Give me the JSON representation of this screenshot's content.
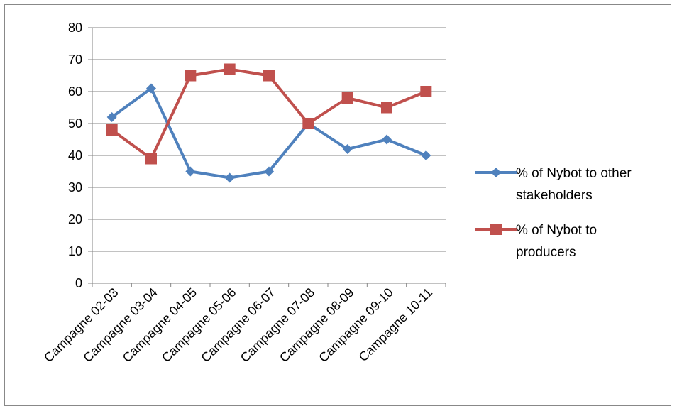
{
  "chart_data": {
    "type": "line",
    "title": "",
    "xlabel": "",
    "ylabel": "",
    "categories": [
      "Campagne 02-03",
      "Campagne 03-04",
      "Campagne 04-05",
      "Campagne 05-06",
      "Campagne 06-07",
      "Campagne 07-08",
      "Campagne 08-09",
      "Campagne 09-10",
      "Campagne 10-11"
    ],
    "ylim": [
      0,
      80
    ],
    "yticks": [
      0,
      10,
      20,
      30,
      40,
      50,
      60,
      70,
      80
    ],
    "grid": true,
    "legend_position": "right",
    "series": [
      {
        "name": "% of Nybot to other stakeholders",
        "legend_lines": [
          "% of Nybot to other",
          "stakeholders"
        ],
        "values": [
          52,
          61,
          35,
          33,
          35,
          50,
          42,
          45,
          40
        ],
        "color": "#4f81bd",
        "marker": "diamond"
      },
      {
        "name": "% of Nybot to producers",
        "legend_lines": [
          "% of Nybot to",
          "producers"
        ],
        "values": [
          48,
          39,
          65,
          67,
          65,
          50,
          58,
          55,
          60
        ],
        "color": "#c0504d",
        "marker": "square"
      }
    ]
  }
}
